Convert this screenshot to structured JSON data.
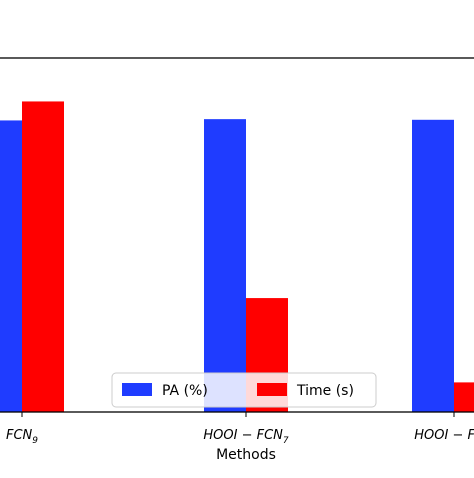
{
  "chart_data": {
    "type": "bar",
    "xlabel": "Methods",
    "categories": [
      {
        "main": "FCN",
        "sub": "9"
      },
      {
        "main": "HOOI − FCN",
        "sub": "7"
      },
      {
        "main": "HOOI − FCN",
        "sub": ""
      }
    ],
    "series": [
      {
        "name": "PA (%)",
        "color": "#1f3cff",
        "values": [
          90.6,
          91.0,
          90.8
        ]
      },
      {
        "name": "Time (s)",
        "color": "#ff0000",
        "values": [
          96.5,
          35.4,
          9.2
        ]
      }
    ],
    "ylim": [
      0,
      110
    ],
    "grid": false,
    "legend_position": "bottom-center"
  }
}
